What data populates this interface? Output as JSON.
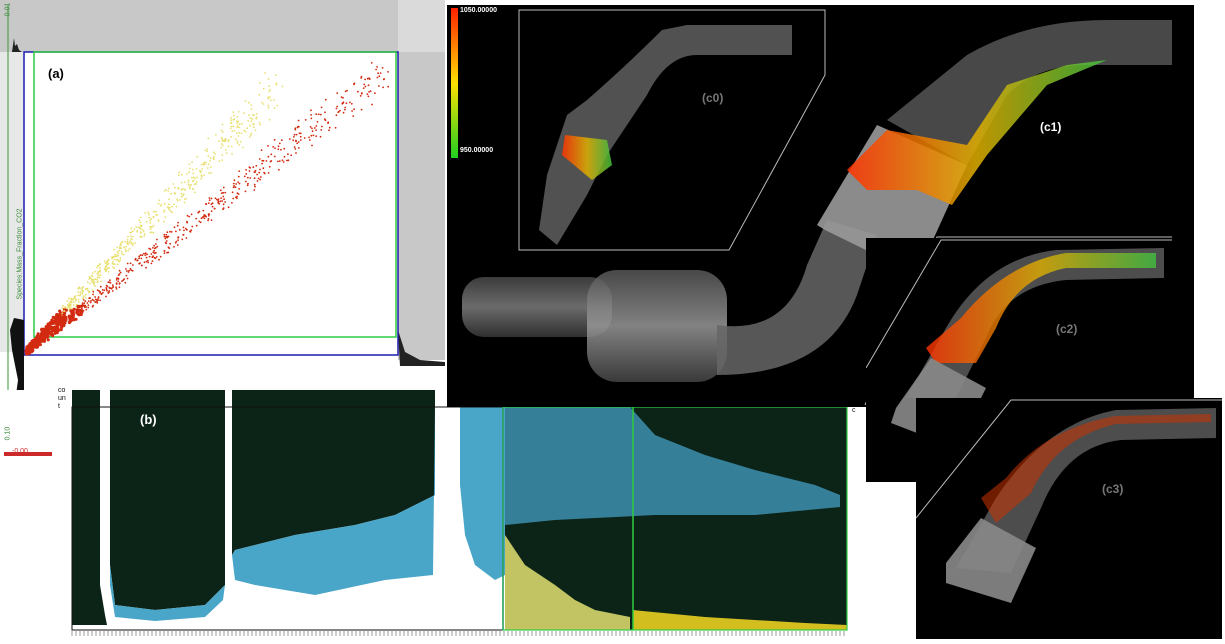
{
  "panel_a": {
    "label": "(a)",
    "y_axis_label": "Species:Mass_Fraction_CO2",
    "y_top_tick": "0.01",
    "y_bottom_tick": "0.10",
    "x_left_tick": "-0.00"
  },
  "panel_b": {
    "label": "(b)",
    "y_axis_label": "count",
    "right_tick": "c"
  },
  "panel_c": {
    "colorbar_max": "1050.00000",
    "colorbar_min": "950.00000",
    "label_c0": "(c0)",
    "label_c1": "(c1)",
    "label_c2": "(c2)",
    "label_c3": "(c3)"
  },
  "colors": {
    "scatter_high": "#d22a10",
    "scatter_low": "#e8e070",
    "selection_box": "#2ecc40",
    "axis_box": "#1c1cb0",
    "hist_dark": "#0c2418",
    "hist_blue": "#4aa6c8",
    "render_bg": "#000000"
  }
}
